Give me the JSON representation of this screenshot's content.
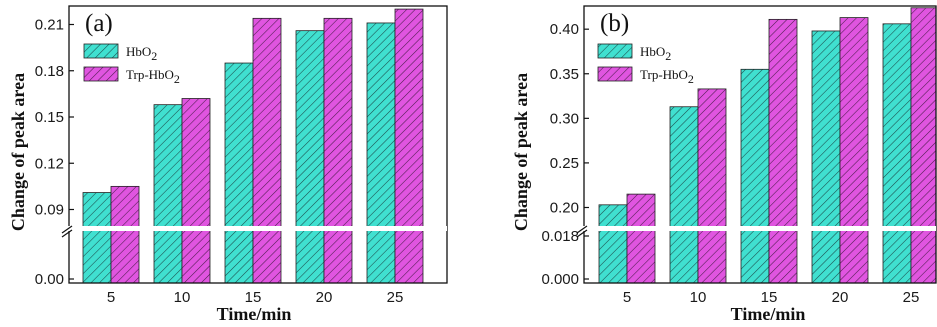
{
  "chart_data": [
    {
      "type": "bar",
      "panel_label": "(a)",
      "categories": [
        "5",
        "10",
        "15",
        "20",
        "25"
      ],
      "series": [
        {
          "name": "HbO",
          "sub": "2",
          "color": "#40e0d0",
          "values": [
            0.101,
            0.158,
            0.185,
            0.206,
            0.211
          ]
        },
        {
          "name": "Trp-HbO",
          "sub": "2",
          "color": "#e055e0",
          "values": [
            0.105,
            0.162,
            0.214,
            0.214,
            0.22
          ]
        }
      ],
      "xlabel": "Time/min",
      "ylabel": "Change of peak area",
      "y_break": true,
      "upper_range": [
        0.078,
        0.222
      ],
      "upper_ticks": [
        "0.09",
        "0.12",
        "0.15",
        "0.18",
        "0.21"
      ],
      "lower_ticks": [
        "0.00"
      ],
      "legend_position": "top-left"
    },
    {
      "type": "bar",
      "panel_label": "(b)",
      "categories": [
        "5",
        "10",
        "15",
        "20",
        "25"
      ],
      "series": [
        {
          "name": "HbO",
          "sub": "2",
          "color": "#40e0d0",
          "values": [
            0.203,
            0.313,
            0.355,
            0.398,
            0.406
          ]
        },
        {
          "name": "Trp-HbO",
          "sub": "2",
          "color": "#e055e0",
          "values": [
            0.215,
            0.333,
            0.411,
            0.413,
            0.424
          ]
        }
      ],
      "xlabel": "Time/min",
      "ylabel": "Change of peak area",
      "y_break": true,
      "upper_range": [
        0.177,
        0.426
      ],
      "upper_ticks": [
        "0.20",
        "0.25",
        "0.30",
        "0.35",
        "0.40"
      ],
      "lower_ticks": [
        "0.000",
        "0.018"
      ],
      "legend_position": "top-left"
    }
  ]
}
